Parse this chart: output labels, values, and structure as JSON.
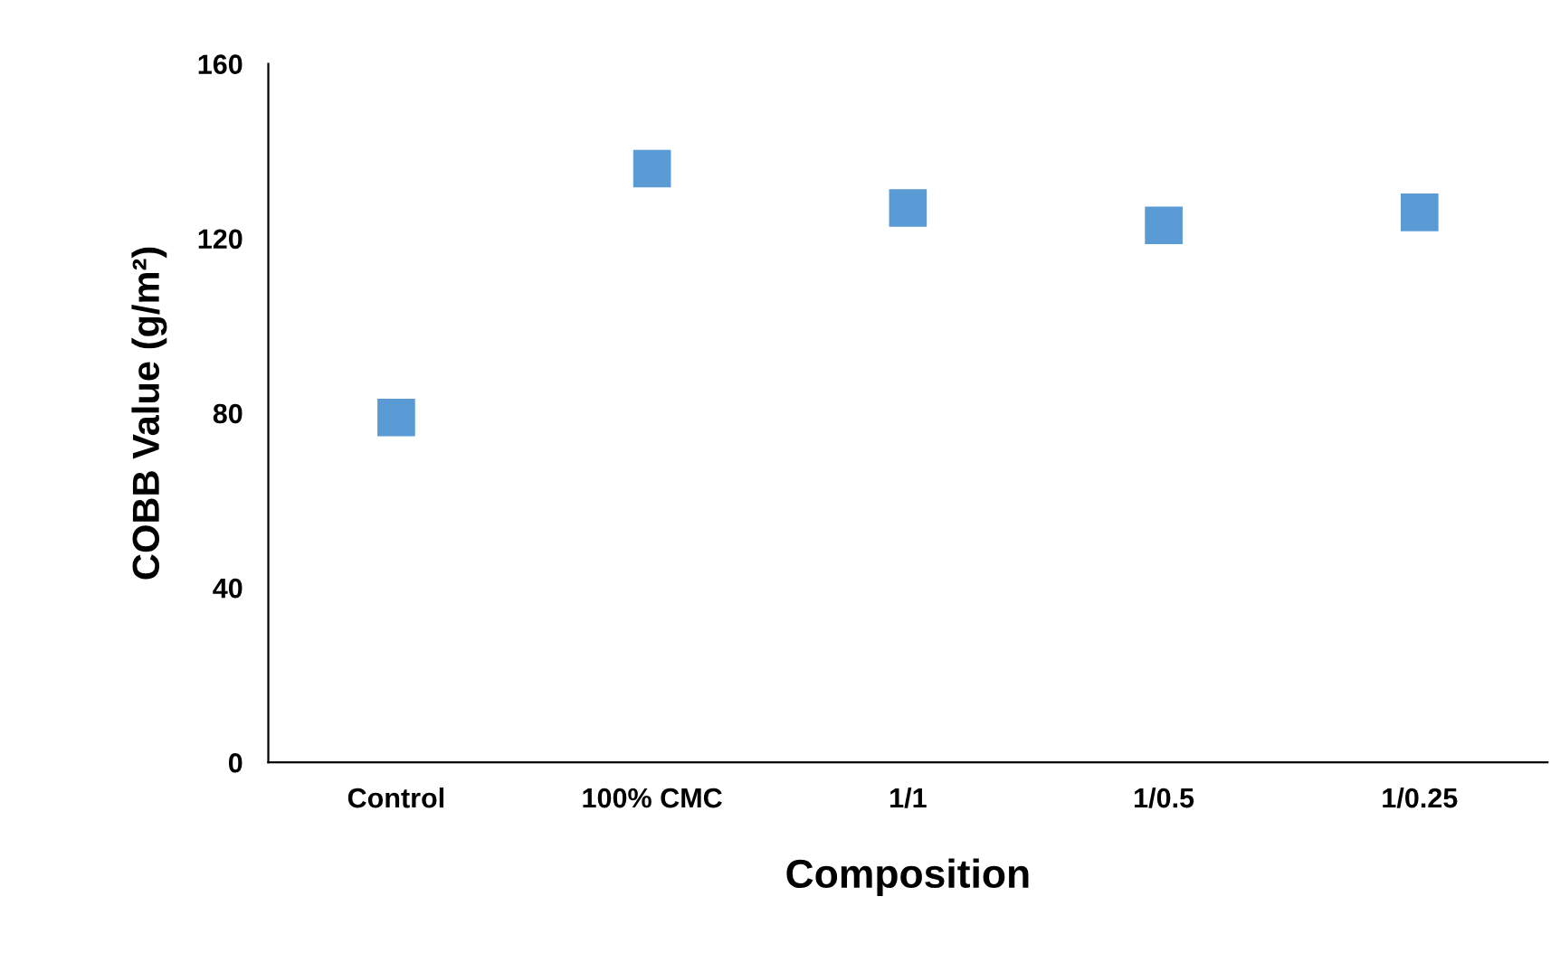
{
  "chart_data": {
    "type": "scatter",
    "xlabel": "Composition",
    "ylabel": "COBB Value (g/m²)",
    "categories": [
      "Control",
      "100% CMC",
      "1/1",
      "1/0.5",
      "1/0.25"
    ],
    "series": [
      {
        "color": "#5b9bd5",
        "values": [
          79,
          136,
          127,
          123,
          126
        ]
      }
    ],
    "ylim": [
      0,
      160
    ],
    "yticks": [
      0,
      40,
      80,
      120,
      160
    ],
    "grid": false,
    "legend": false,
    "marker": "square"
  }
}
